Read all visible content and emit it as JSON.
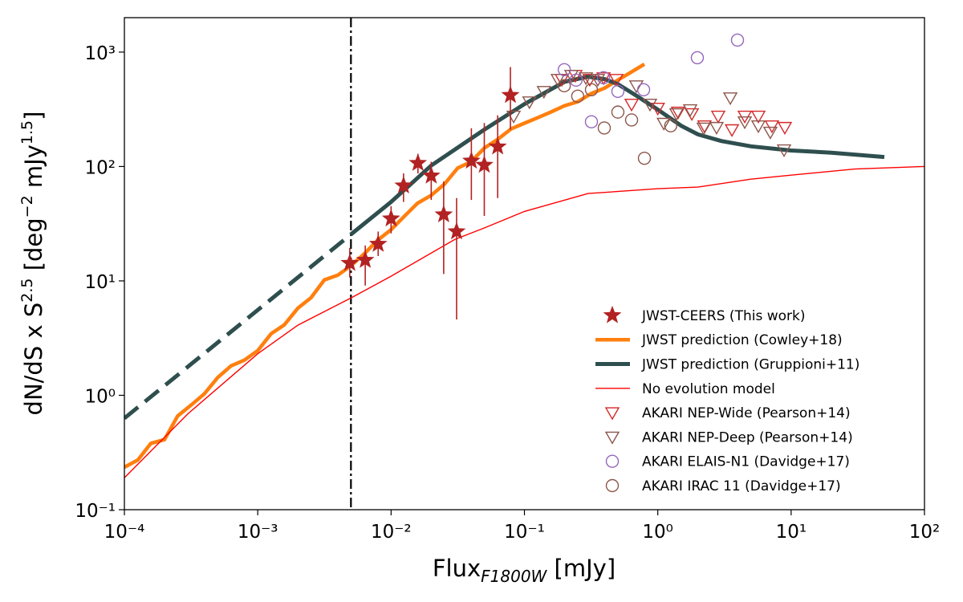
{
  "chart_data": {
    "type": "line",
    "xscale": "log",
    "yscale": "log",
    "xlabel": {
      "text": "Flux",
      "subscript": "F1800W",
      "unit": " [mJy]"
    },
    "ylabel": [
      {
        "text": "dN/dS x S",
        "sup": false
      },
      {
        "text": "2.5",
        "sup": true
      },
      {
        "text": " [deg",
        "sup": false
      },
      {
        "text": "−2",
        "sup": true
      },
      {
        "text": " mJy",
        "sup": false
      },
      {
        "text": "1.5",
        "sup": true
      },
      {
        "text": "]",
        "sup": false
      }
    ],
    "xlim": [
      0.0001,
      100
    ],
    "ylim": [
      0.1,
      2000
    ],
    "xticks": [
      {
        "value": 0.0001,
        "label": "10⁻⁴"
      },
      {
        "value": 0.001,
        "label": "10⁻³"
      },
      {
        "value": 0.01,
        "label": "10⁻²"
      },
      {
        "value": 0.1,
        "label": "10⁻¹"
      },
      {
        "value": 1,
        "label": "10⁰"
      },
      {
        "value": 10,
        "label": "10¹"
      },
      {
        "value": 100,
        "label": "10²"
      }
    ],
    "yticks": [
      {
        "value": 0.1,
        "label": "10⁻¹"
      },
      {
        "value": 1,
        "label": "10⁰"
      },
      {
        "value": 10,
        "label": "10¹"
      },
      {
        "value": 100,
        "label": "10²"
      },
      {
        "value": 1000,
        "label": "10³"
      }
    ],
    "vline": {
      "x": 0.005,
      "linestyle": "dashdot",
      "color": "#000000"
    },
    "legend": "lower right",
    "series": [
      {
        "name": "JWST-CEERS (This work)",
        "kind": "errorbar",
        "marker": "star",
        "color": "#b22222",
        "x": [
          0.0049,
          0.0064,
          0.008,
          0.01,
          0.0124,
          0.0159,
          0.02,
          0.0248,
          0.031,
          0.04,
          0.05,
          0.063,
          0.0785
        ],
        "values": [
          14.3,
          15.2,
          21,
          35,
          68,
          107,
          83,
          38,
          27,
          112,
          103,
          149,
          420
        ],
        "error_low": [
          10.7,
          9.1,
          16.5,
          26,
          49,
          87,
          51,
          11.5,
          4.6,
          51,
          37,
          53,
          210
        ],
        "error_high": [
          19.4,
          20.4,
          27,
          45,
          87,
          129,
          110,
          74,
          53,
          216,
          240,
          280,
          740
        ]
      },
      {
        "name": "JWST prediction (Cowley+18)",
        "kind": "line",
        "color": "#ff7f0e",
        "width": 4.5,
        "segments": [
          {
            "linestyle": "solid",
            "x": [
              0.0001,
              0.000126,
              0.000158,
              0.0002,
              0.000251,
              0.000316,
              0.000398,
              0.000501,
              0.000631,
              0.000794,
              0.001,
              0.00126,
              0.00158,
              0.002,
              0.00251,
              0.00316,
              0.00398,
              0.00501,
              0.00631,
              0.00794,
              0.01,
              0.0126,
              0.0158,
              0.02,
              0.0251,
              0.0316,
              0.0398,
              0.0501,
              0.0631,
              0.0794,
              0.1,
              0.126,
              0.158,
              0.2,
              0.251,
              0.316,
              0.398,
              0.501,
              0.631,
              0.794
            ],
            "values": [
              0.235,
              0.272,
              0.38,
              0.41,
              0.66,
              0.82,
              1.03,
              1.43,
              1.81,
              2.03,
              2.46,
              3.45,
              4.12,
              5.78,
              7.13,
              10.2,
              11.2,
              13.6,
              17.3,
              22.7,
              28,
              36.8,
              47.7,
              56,
              70,
              97,
              110,
              145,
              173,
              213,
              239,
              267,
              299,
              340,
              368,
              433,
              484,
              569,
              668,
              785
            ]
          }
        ]
      },
      {
        "name": "JWST prediction (Gruppioni+11)",
        "kind": "line",
        "color": "#2f4f4f",
        "width": 5,
        "segments": [
          {
            "linestyle": "dashed",
            "x": [
              0.0001,
              0.005
            ],
            "values": [
              0.63,
              25.5
            ]
          },
          {
            "linestyle": "solid",
            "x": [
              0.005,
              0.01,
              0.02,
              0.05,
              0.1,
              0.2,
              0.3,
              0.4,
              0.5,
              0.7,
              1,
              1.5,
              2,
              3,
              5,
              10,
              20,
              50
            ],
            "values": [
              25.5,
              49,
              102,
              210,
              351,
              550,
              610,
              580,
              527,
              412,
              314,
              227,
              191,
              167,
              150,
              138,
              132,
              121
            ]
          }
        ]
      },
      {
        "name": "No evolution model",
        "kind": "line",
        "color": "#ff0000",
        "width": 1.4,
        "segments": [
          {
            "linestyle": "solid",
            "x": [
              0.0001,
              0.0003,
              0.001,
              0.002,
              0.005,
              0.01,
              0.03,
              0.05,
              0.1,
              0.3,
              1,
              2,
              5,
              10,
              30,
              100
            ],
            "values": [
              0.19,
              0.69,
              2.31,
              4.1,
              7.1,
              11,
              23,
              29,
              40.5,
              58,
              64,
              66,
              77.5,
              84,
              95,
              100
            ]
          }
        ]
      },
      {
        "name": "AKARI NEP-Wide (Pearson+14)",
        "kind": "scatter",
        "marker": "triangle_down",
        "color": "#d62728",
        "x": [
          0.191,
          0.241,
          0.309,
          0.392,
          0.489,
          0.636,
          1.0,
          1.42,
          1.8,
          2.24,
          2.84,
          3.6,
          4.49,
          5.68,
          7.18,
          8.97
        ],
        "values": [
          578,
          627,
          578,
          597,
          578,
          351,
          324,
          299,
          290,
          227,
          276,
          210,
          276,
          276,
          227,
          220
        ]
      },
      {
        "name": "AKARI NEP-Deep (Pearson+14)",
        "kind": "scatter",
        "marker": "triangle_down",
        "color": "#8c564b",
        "x": [
          0.083,
          0.109,
          0.14,
          0.178,
          0.225,
          0.289,
          0.355,
          0.69,
          0.874,
          1.11,
          1.38,
          1.75,
          2.21,
          2.76,
          3.5,
          4.49,
          5.68,
          6.98,
          8.85
        ],
        "values": [
          276,
          368,
          454,
          578,
          627,
          597,
          578,
          508,
          351,
          239,
          290,
          314,
          217,
          220,
          399,
          246,
          227,
          200,
          140
        ]
      },
      {
        "name": "AKARI ELAIS-N1 (Davidge+17)",
        "kind": "scatter",
        "marker": "circle",
        "color": "#9467bd",
        "x": [
          0.199,
          0.244,
          0.392,
          0.502,
          0.783,
          0.318,
          1.98,
          3.96
        ],
        "values": [
          702,
          569,
          597,
          454,
          469,
          246,
          893,
          1274
        ]
      },
      {
        "name": "AKARI IRAC 11 (Davidge+17)",
        "kind": "scatter",
        "marker": "circle",
        "color": "#8c564b",
        "x": [
          0.199,
          0.251,
          0.318,
          0.397,
          0.502,
          0.636,
          0.794,
          1.25
        ],
        "values": [
          508,
          412,
          469,
          217,
          299,
          255,
          118,
          227
        ]
      }
    ]
  }
}
